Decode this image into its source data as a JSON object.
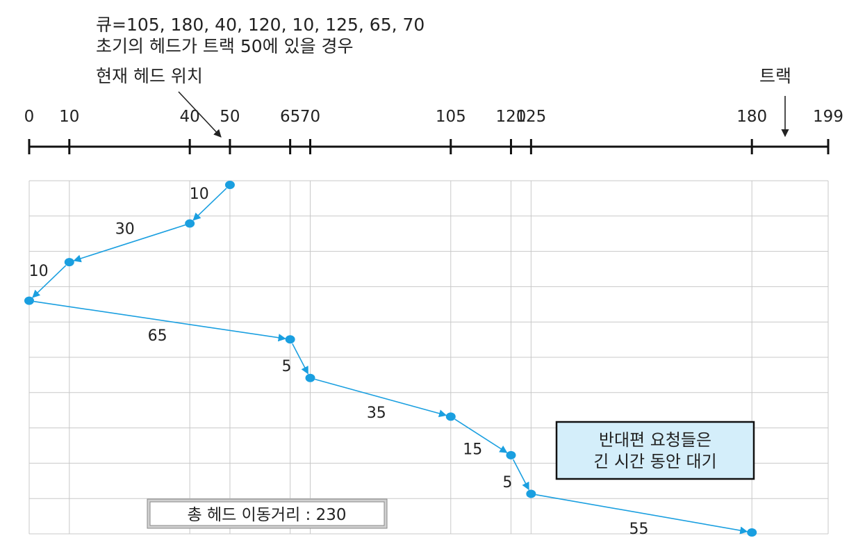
{
  "header": {
    "queue_line": "큐=105, 180, 40, 120, 10, 125, 65, 70",
    "initial_line": "초기의 헤드가 트랙 50에 있을 경우",
    "current_head_label": "현재 헤드 위치",
    "track_label": "트랙"
  },
  "chart_data": {
    "type": "line",
    "title": "",
    "axis_min": 0,
    "axis_max": 199,
    "tick_labels": [
      "0",
      "10",
      "40",
      "50",
      "65",
      "70",
      "105",
      "120",
      "125",
      "180",
      "199"
    ],
    "tick_values": [
      0,
      10,
      40,
      50,
      65,
      70,
      105,
      120,
      125,
      180,
      199
    ],
    "head_start": 50,
    "service_order": [
      50,
      40,
      10,
      0,
      65,
      70,
      105,
      120,
      125,
      180
    ],
    "segment_distances": [
      "10",
      "30",
      "10",
      "65",
      "5",
      "35",
      "15",
      "5",
      "55"
    ],
    "grid": true
  },
  "callout": {
    "line1": "반대편 요청들은",
    "line2": "긴 시간 동안 대기"
  },
  "total": {
    "label": "총 헤드 이동거리 : 230"
  },
  "colors": {
    "path": "#1a9fe0",
    "callout_bg": "#d4eefa",
    "grid": "#c8c8c8",
    "axis": "#111111"
  }
}
